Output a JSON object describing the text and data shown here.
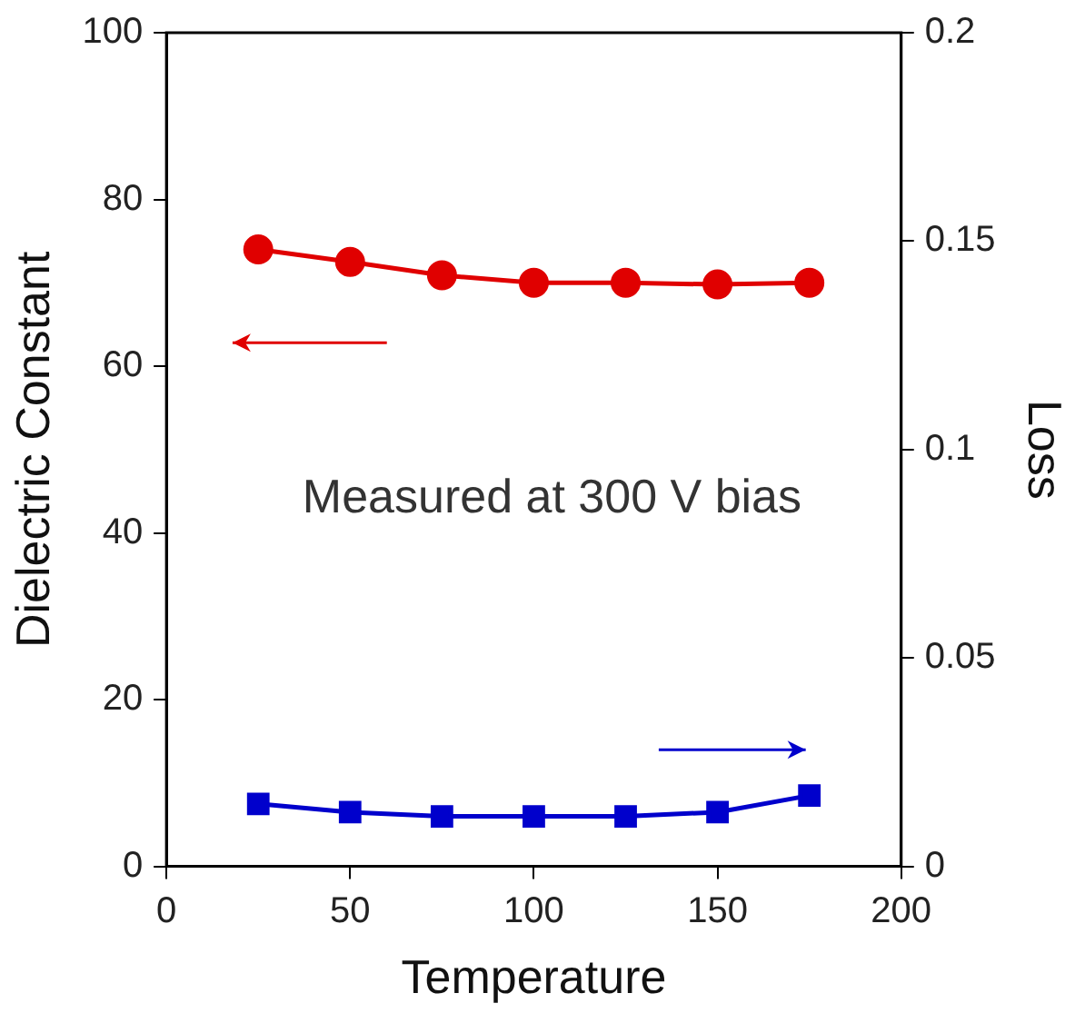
{
  "chart_data": {
    "type": "line",
    "xlabel": "Temperature",
    "ylabel": "Dielectric Constant",
    "y2label": "Loss",
    "annotations": [
      "Measured at 300 V bias"
    ],
    "x": [
      25,
      50,
      75,
      100,
      125,
      150,
      175
    ],
    "series": [
      {
        "color": "#e00000",
        "marker": "circle",
        "values": [
          74,
          72.5,
          70.9,
          70,
          70,
          69.8,
          70
        ]
      },
      {
        "color": "#0000cc",
        "marker": "square",
        "axis": "y2",
        "values": [
          0.015,
          0.013,
          0.012,
          0.012,
          0.012,
          0.013,
          0.017
        ]
      }
    ],
    "xlim": [
      0,
      200
    ],
    "xticks": [
      0,
      50,
      100,
      150,
      200
    ],
    "ylim": [
      0,
      100
    ],
    "yticks": [
      0,
      20,
      40,
      60,
      80,
      100
    ],
    "y2lim": [
      0,
      0.2
    ],
    "y2ticks": [
      0,
      0.05,
      0.1,
      0.15,
      0.2
    ],
    "grid": false,
    "legend": false,
    "line_style": "solid"
  }
}
